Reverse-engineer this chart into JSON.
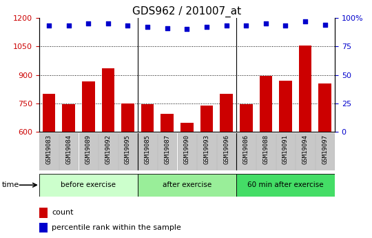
{
  "title": "GDS962 / 201007_at",
  "categories": [
    "GSM19083",
    "GSM19084",
    "GSM19089",
    "GSM19092",
    "GSM19095",
    "GSM19085",
    "GSM19087",
    "GSM19090",
    "GSM19093",
    "GSM19096",
    "GSM19086",
    "GSM19088",
    "GSM19091",
    "GSM19094",
    "GSM19097"
  ],
  "counts": [
    800,
    745,
    865,
    935,
    750,
    745,
    695,
    650,
    740,
    800,
    745,
    895,
    870,
    1055,
    855
  ],
  "percentile_ranks": [
    93,
    93,
    95,
    95,
    93,
    92,
    91,
    90,
    92,
    93,
    93,
    95,
    93,
    97,
    94
  ],
  "ylim_left": [
    600,
    1200
  ],
  "ylim_right": [
    0,
    100
  ],
  "yticks_left": [
    600,
    750,
    900,
    1050,
    1200
  ],
  "yticks_right": [
    0,
    25,
    50,
    75,
    100
  ],
  "groups": [
    {
      "label": "before exercise",
      "start": 0,
      "end": 5
    },
    {
      "label": "after exercise",
      "start": 5,
      "end": 10
    },
    {
      "label": "60 min after exercise",
      "start": 10,
      "end": 15
    }
  ],
  "bar_color": "#cc0000",
  "dot_color": "#0000cc",
  "group_bg_colors": [
    "#ccffcc",
    "#99ee99",
    "#44dd66"
  ],
  "xtick_bg_color": "#c8c8c8",
  "tick_color_left": "#cc0000",
  "tick_color_right": "#0000cc",
  "title_fontsize": 11,
  "legend_labels": [
    "count",
    "percentile rank within the sample"
  ],
  "plot_bg": "#ffffff"
}
